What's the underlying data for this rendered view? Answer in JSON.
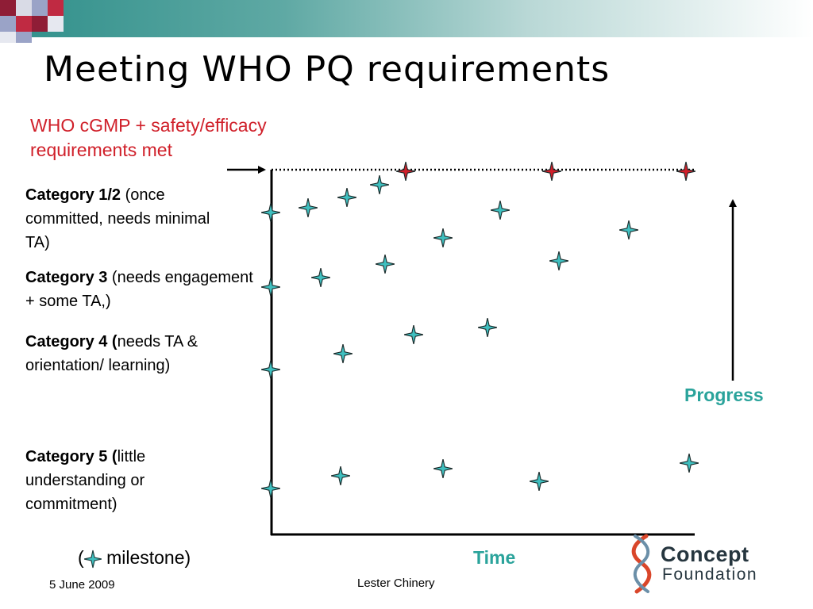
{
  "slide": {
    "title": "Meeting WHO PQ requirements",
    "who_requirements": "WHO cGMP + safety/efficacy requirements met",
    "categories": [
      {
        "bold": "Category 1/2",
        "rest": " (once committed, needs minimal TA)"
      },
      {
        "bold": "Category 3",
        "rest": " (needs engagement + some TA,)"
      },
      {
        "bold": "Category 4 (",
        "rest": "needs TA & orientation/ learning)"
      },
      {
        "bold": "Category 5 (",
        "rest": "little understanding or commitment)"
      }
    ],
    "progress_label": "Progress",
    "time_label": "Time",
    "legend": {
      "open": "(",
      "text": "milestone)"
    },
    "footer": {
      "date": "5 June 2009",
      "author": "Lester Chinery"
    },
    "logo": {
      "line1": "Concept",
      "line2": "Foundation"
    }
  },
  "colors": {
    "accent_teal": "#2aa39b",
    "milestone_teal": "#3fc0c0",
    "milestone_red": "#d0202a",
    "requirements_red": "#d0202a",
    "banner": "#2f8f8a"
  },
  "icons": {
    "milestone": "four-point-star-icon",
    "logo": "dna-helix-icon"
  }
}
